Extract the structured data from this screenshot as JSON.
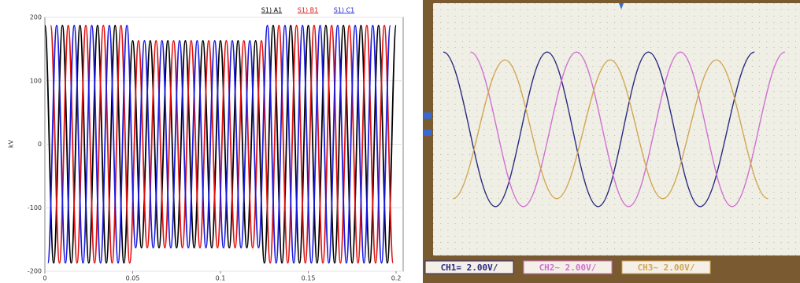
{
  "chart_data": [
    {
      "type": "line",
      "y_label": "kV",
      "legend": "top-right",
      "grid": true,
      "xlim": [
        0,
        0.204
      ],
      "ylim": [
        -200,
        200
      ],
      "xticks": [
        0,
        0.05,
        0.1,
        0.15,
        0.2
      ],
      "yticks": [
        -200,
        -100,
        0,
        100,
        200
      ],
      "series": [
        {
          "name": "S1) A1",
          "color": "#000000",
          "x": [
            0,
            0.005,
            0.01,
            0.015,
            0.02,
            0.025,
            0.03,
            0.035,
            0.04,
            0.045,
            0.05,
            0.055,
            0.06,
            0.065,
            0.07,
            0.075,
            0.08,
            0.085,
            0.09,
            0.095,
            0.1,
            0.105,
            0.11,
            0.115,
            0.12,
            0.125,
            0.13,
            0.135,
            0.14,
            0.145,
            0.15,
            0.155,
            0.16,
            0.165,
            0.17,
            0.175,
            0.18,
            0.185,
            0.19,
            0.195,
            0.2
          ],
          "values": [
            187,
            -187,
            187,
            -187,
            187,
            -187,
            187,
            -187,
            187,
            -187,
            163,
            -163,
            163,
            -163,
            163,
            -163,
            163,
            -163,
            163,
            -163,
            163,
            -163,
            163,
            -163,
            163,
            -187,
            187,
            -187,
            187,
            -187,
            187,
            -187,
            187,
            -187,
            187,
            -187,
            187,
            -187,
            187,
            -187,
            187
          ]
        },
        {
          "name": "S1) B1",
          "color": "#e01010",
          "x": [
            0.0033,
            0.0083,
            0.0133,
            0.0183,
            0.0233,
            0.0283,
            0.0333,
            0.0383,
            0.0433,
            0.0483,
            0.0533,
            0.0583,
            0.0633,
            0.0683,
            0.0733,
            0.0783,
            0.0833,
            0.0883,
            0.0933,
            0.0983,
            0.1033,
            0.1083,
            0.1133,
            0.1183,
            0.1233,
            0.1283,
            0.1333,
            0.1383,
            0.1433,
            0.1483,
            0.1533,
            0.1583,
            0.1633,
            0.1683,
            0.1733,
            0.1783,
            0.1833,
            0.1883,
            0.1933,
            0.1983
          ],
          "values": [
            187,
            -187,
            187,
            -187,
            187,
            -187,
            187,
            -187,
            187,
            -187,
            163,
            -163,
            163,
            -163,
            163,
            -163,
            163,
            -163,
            163,
            -163,
            163,
            -163,
            163,
            -163,
            163,
            -187,
            187,
            -187,
            187,
            -187,
            187,
            -187,
            187,
            -187,
            187,
            -187,
            187,
            -187,
            187,
            -187
          ]
        },
        {
          "name": "S1) C1",
          "color": "#1a1ae0",
          "x": [
            0.0017,
            0.0067,
            0.0117,
            0.0167,
            0.0217,
            0.0267,
            0.0317,
            0.0367,
            0.0417,
            0.0467,
            0.0517,
            0.0567,
            0.0617,
            0.0667,
            0.0717,
            0.0767,
            0.0817,
            0.0867,
            0.0917,
            0.0967,
            0.1017,
            0.1067,
            0.1117,
            0.1167,
            0.1217,
            0.1267,
            0.1317,
            0.1367,
            0.1417,
            0.1467,
            0.1517,
            0.1567,
            0.1617,
            0.1667,
            0.1717,
            0.1767,
            0.1817,
            0.1867,
            0.1917,
            0.1967
          ],
          "values": [
            -187,
            187,
            -187,
            187,
            -187,
            187,
            -187,
            187,
            -187,
            187,
            -163,
            163,
            -163,
            163,
            -163,
            163,
            -163,
            163,
            -163,
            163,
            -163,
            163,
            -163,
            163,
            -163,
            187,
            -187,
            187,
            -187,
            187,
            -187,
            187,
            -187,
            187,
            -187,
            187,
            -187,
            187,
            -187,
            187
          ]
        }
      ]
    },
    {
      "type": "line",
      "legend": "bottom",
      "xlim": [
        0,
        10
      ],
      "ylim": [
        -4,
        4
      ],
      "series": [
        {
          "name": "CH1= 2.00V/",
          "color": "#2a2a80",
          "x": [
            0.28,
            1.7,
            3.11,
            4.5,
            5.87,
            7.28,
            8.76
          ],
          "values": [
            2.45,
            -2.45,
            2.45,
            -2.45,
            2.45,
            -2.45,
            2.45
          ]
        },
        {
          "name": "CH2~ 2.00V/",
          "color": "#d070d0",
          "x": [
            1.02,
            2.46,
            3.91,
            5.33,
            6.74,
            8.15,
            9.59
          ],
          "values": [
            2.45,
            -2.45,
            2.45,
            -2.45,
            2.45,
            -2.45,
            2.45
          ]
        },
        {
          "name": "CH3~ 2.00V/",
          "color": "#d2a650",
          "x": [
            0.54,
            1.96,
            3.37,
            4.83,
            6.26,
            7.72,
            9.13
          ],
          "values": [
            -2.2,
            2.2,
            -2.2,
            2.2,
            -2.2,
            2.2,
            -2.2
          ]
        }
      ]
    }
  ]
}
